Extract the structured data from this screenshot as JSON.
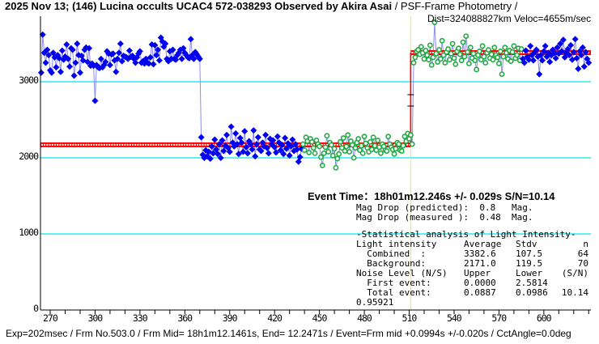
{
  "header": {
    "title_bold": "2025 Nov 13; (146) Lucina occults UCAC4 572-038293 Observed by Akira Asai",
    "title_suffix": " / PSF-Frame Photometry /",
    "dist_line": "Dist=324088827km Veloc=4655m/sec"
  },
  "event": {
    "headline": "Event Time：18h01m12.246s  +/- 0.029s  S/N=10.14",
    "rows": [
      [
        "Mag Drop (predicted):  0.8   Mag.",
        "",
        "",
        ""
      ],
      [
        "Mag Drop (measured ):  0.48  Mag.",
        "",
        "",
        ""
      ],
      [
        "-Statistical analysis of Light Intensity-",
        "",
        "",
        ""
      ],
      [
        "Light intensity",
        "Average",
        "Stdv",
        "n"
      ],
      [
        "  Combined  :",
        "3382.6",
        "107.5",
        "64"
      ],
      [
        "  Background:",
        "2171.0",
        "119.5",
        "70"
      ],
      [
        "Noise Level (N/S)",
        "Upper",
        "Lower",
        "(S/N)"
      ],
      [
        "  First event:",
        "0.0000",
        "2.5814",
        ""
      ],
      [
        "  Total event:",
        "0.0887",
        "0.0986",
        "10.14"
      ],
      [
        "0.95921",
        "",
        "",
        ""
      ]
    ]
  },
  "footer": "Exp=202msec / Frm No.503.0 / Frm Mid= 18h1m12.1461s,  End= 12.2471s / Event=Frm mid +0.0994s +/-0.020s / CctAngle=0.0deg",
  "chart_data": {
    "type": "scatter",
    "title": "",
    "xlabel": "",
    "ylabel": "",
    "xlim": [
      263.5,
      632
    ],
    "ylim": [
      0,
      3870
    ],
    "x_ticks": [
      "270",
      "300",
      "330",
      "360",
      "390",
      "420",
      "450",
      "480",
      "510",
      "540",
      "570",
      "600"
    ],
    "y_ticks": [
      "3000",
      "2000",
      "1000",
      "0"
    ],
    "grid_y": [
      1000,
      2000,
      3000
    ],
    "grid_color": "#00e5ee",
    "line_color": "#8c8cf0",
    "event_frame": 511,
    "event_marker_color": "#ffee00",
    "fit": {
      "background_level": 2171.0,
      "event_level": 3382.6,
      "color": "#ff0000"
    },
    "series": [
      {
        "x_start": 264,
        "marker": "filled-diamond",
        "color": "#0000ee",
        "values": [
          3120,
          3620,
          3380,
          3250,
          3420,
          3350,
          3150,
          3120,
          3380,
          3320,
          3190,
          3350,
          3310,
          3130,
          3410,
          3290,
          3330,
          3490,
          3300,
          3200,
          3440,
          3420,
          3080,
          3250,
          3500,
          3350,
          3120,
          3340,
          3280,
          3420,
          3450,
          3260,
          3440,
          3210,
          3240,
          3210,
          2750,
          3220,
          3190,
          3180,
          3300,
          3190,
          3220,
          3260,
          3400,
          3370,
          3220,
          3360,
          3370,
          3280,
          3130,
          3300,
          3380,
          3500,
          3270,
          3340,
          3330,
          3320,
          3300,
          3410,
          3330,
          3340,
          3300,
          3250,
          3320,
          3370,
          3400,
          3250,
          3270,
          3240,
          3300,
          3250,
          3240,
          3320,
          3490,
          3230,
          3480,
          3350,
          3420,
          3280,
          3580,
          3530,
          3460,
          3500,
          3300,
          3270,
          3400,
          3300,
          3420,
          3300,
          3290,
          3350,
          3380,
          3420,
          3300,
          3440,
          3380,
          3350,
          3320,
          3310,
          3560,
          3350,
          3300,
          3390,
          3360,
          3330,
          3300
        ]
      },
      {
        "x_start": 371,
        "marker": "filled-diamond",
        "color": "#0000ee",
        "values": [
          2270,
          2040,
          2000,
          2100,
          2020,
          2080,
          1990,
          2150,
          2060,
          2240,
          2110,
          2050,
          2180,
          2000,
          2230,
          2090,
          2160,
          2300,
          2130,
          2080,
          2410,
          2200,
          2150,
          2320,
          2180,
          2050,
          2260,
          2200,
          2080,
          2350,
          2140,
          2060,
          2220,
          2180,
          2110,
          2360,
          2020,
          2180,
          2270,
          2110,
          2090,
          2200,
          2150,
          2300,
          2130,
          2060,
          2250,
          2180,
          2230,
          2140,
          2070,
          2280,
          2200,
          2100,
          2170,
          2050,
          2260,
          2120,
          2190,
          2030,
          2150,
          2240,
          2090,
          2180,
          2110,
          1950,
          2010,
          2120
        ]
      },
      {
        "x_start": 439,
        "marker": "hollow-diamond",
        "color": "#22aa44",
        "values": [
          2180,
          2100,
          2270,
          2220,
          2070,
          2250,
          2210,
          2130,
          2060,
          2230,
          2180,
          2150,
          2010,
          1900,
          2060,
          2140,
          2290,
          2080,
          2200,
          2170,
          2030,
          2120,
          1870,
          1990,
          2050,
          2210,
          2130,
          2260,
          2090,
          2150,
          2300,
          2080,
          2220,
          2170,
          2000,
          2130,
          2200,
          2250,
          2100,
          2160,
          2060,
          2280,
          2190,
          2130,
          2080,
          2210,
          2110,
          2270,
          2160,
          2100,
          2230,
          2140,
          2060,
          2180,
          2150,
          2100,
          2090,
          2280,
          2180,
          2140,
          2110,
          2050,
          2120,
          2200,
          2180,
          2100,
          2090,
          2160,
          2280,
          2220,
          2320,
          2250,
          2300,
          2180
        ]
      },
      {
        "x_start": 513,
        "marker": "hollow-diamond",
        "color": "#22aa44",
        "values": [
          3250,
          3320,
          3400,
          3420,
          3360,
          3460,
          3380,
          3300,
          3410,
          3350,
          3290,
          3480,
          3220,
          3320,
          3780,
          3370,
          3260,
          3420,
          3300,
          3540,
          3350,
          3250,
          3390,
          3430,
          3290,
          3370,
          3500,
          3310,
          3230,
          3400,
          3440,
          3360,
          3280,
          3520,
          3330,
          3600,
          3390,
          3240,
          3450,
          3310,
          3370,
          3280,
          3160,
          3350,
          3400,
          3290,
          3470,
          3330,
          3250,
          3380,
          3420,
          3310,
          3360,
          3290,
          3450,
          3350,
          3320,
          3240,
          3400,
          3100,
          3330,
          3450,
          3380,
          3300,
          3410,
          3270,
          3390,
          3470,
          3310,
          3350,
          3440,
          3280,
          3430
        ]
      },
      {
        "x_start": 586,
        "marker": "filled-diamond",
        "color": "#0000ee",
        "values": [
          3300,
          3250,
          3410,
          3330,
          3290,
          3470,
          3350,
          3280,
          3390,
          3420,
          3330,
          3100,
          3350,
          3280,
          3400,
          3470,
          3330,
          3380,
          3260,
          3350,
          3420,
          3380,
          3310,
          3450,
          3370,
          3500,
          3400,
          3550,
          3320,
          3380,
          3430,
          3350,
          3480,
          3290,
          3390,
          3560,
          3310,
          3170,
          3400,
          3350,
          3450,
          3200,
          3390,
          3300,
          3250
        ]
      }
    ]
  }
}
